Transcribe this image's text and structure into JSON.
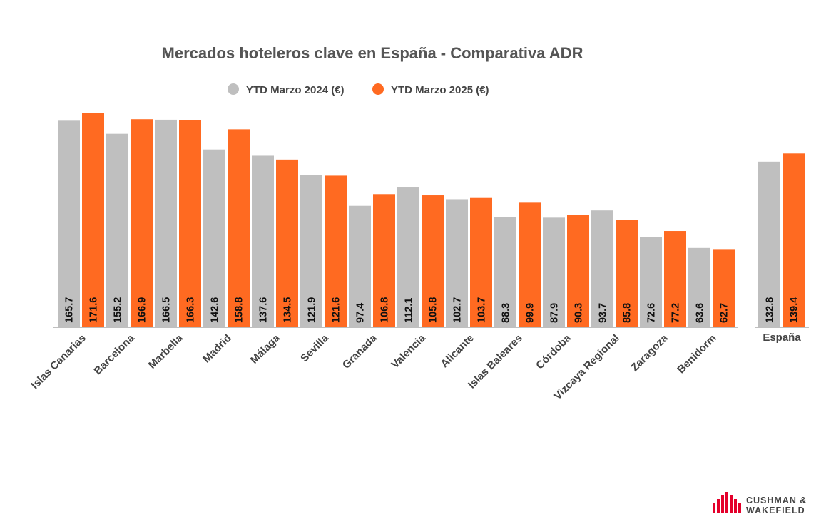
{
  "chart_data": {
    "type": "bar",
    "title": "Mercados hoteleros clave en España - Comparativa ADR",
    "legend_position": "top",
    "grid": false,
    "ylim": [
      0,
      180
    ],
    "categories": [
      "Islas Canarias",
      "Barcelona",
      "Marbella",
      "Madrid",
      "Málaga",
      "Sevilla",
      "Granada",
      "Valencia",
      "Alicante",
      "Islas Baleares",
      "Córdoba",
      "Vizcaya Regional",
      "Zaragoza",
      "Benidorm"
    ],
    "series": [
      {
        "name": "YTD Marzo 2024 (€)",
        "color": "#bfbfbf",
        "values": [
          165.7,
          155.2,
          166.5,
          142.6,
          137.6,
          121.9,
          97.4,
          112.1,
          102.7,
          88.3,
          87.9,
          93.7,
          72.6,
          63.6
        ]
      },
      {
        "name": "YTD Marzo 2025 (€)",
        "color": "#ff6a21",
        "values": [
          171.6,
          166.9,
          166.3,
          158.8,
          134.5,
          121.6,
          106.8,
          105.8,
          103.7,
          99.9,
          90.3,
          85.8,
          77.2,
          62.7
        ]
      }
    ],
    "summary": {
      "category": "España",
      "values": [
        132.8,
        139.4
      ]
    }
  },
  "logo": {
    "line1": "CUSHMAN &",
    "line2": "WAKEFIELD",
    "color": "#e4002b"
  }
}
